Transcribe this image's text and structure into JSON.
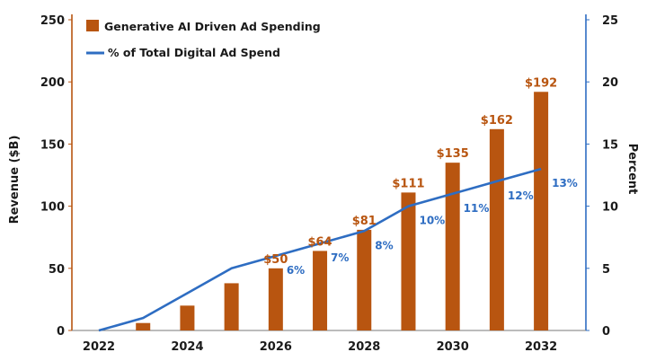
{
  "chart_data": {
    "type": "bar",
    "x": [
      2022,
      2023,
      2024,
      2025,
      2026,
      2027,
      2028,
      2029,
      2030,
      2031,
      2032
    ],
    "x_tick_labels": [
      "2022",
      "2024",
      "2026",
      "2028",
      "2030",
      "2032"
    ],
    "series": [
      {
        "name": "Generative AI Driven Ad Spending",
        "type": "bar",
        "axis": "left",
        "color": "#B85510",
        "values": [
          0,
          6,
          20,
          38,
          50,
          64,
          81,
          111,
          135,
          162,
          192
        ],
        "labels": [
          null,
          null,
          null,
          null,
          "$50",
          "$64",
          "$81",
          "$111",
          "$135",
          "$162",
          "$192"
        ]
      },
      {
        "name": "% of Total Digital Ad Spend",
        "type": "line",
        "axis": "right",
        "color": "#2E6DC2",
        "values": [
          0,
          1,
          3,
          5,
          6,
          7,
          8,
          10,
          11,
          12,
          13
        ],
        "labels": [
          null,
          null,
          null,
          null,
          "6%",
          "7%",
          "8%",
          "10%",
          "11%",
          "12%",
          "13%"
        ]
      }
    ],
    "ylabel": "Revenue ($B)",
    "y2label": "Percent",
    "ylim": [
      0,
      250
    ],
    "y2lim": [
      0,
      25
    ],
    "y_ticks": [
      0,
      50,
      100,
      150,
      200,
      250
    ],
    "y2_ticks": [
      0,
      5,
      10,
      15,
      20,
      25
    ],
    "axis_right_color": "#2E6DC2",
    "label_color_bar": "#B85510",
    "label_color_line": "#2E6DC2",
    "legend": {
      "position": "top-left"
    }
  }
}
